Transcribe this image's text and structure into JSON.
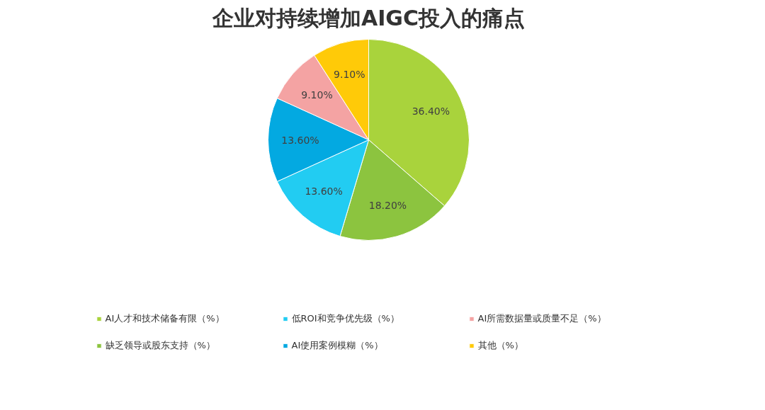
{
  "chart_data": {
    "type": "pie",
    "title": "企业对持续增加AIGC投入的痛点",
    "categories": [
      "AI人才和技术储备有限（%）",
      "缺乏领导或股东支持（%）",
      "低ROI和竞争优先级（%）",
      "AI使用案例模糊（%）",
      "AI所需数据量或质量不足（%）",
      "其他（%）"
    ],
    "values": [
      36.4,
      18.2,
      13.6,
      13.6,
      9.1,
      9.1
    ],
    "colors": [
      "#a9d33c",
      "#8cc43f",
      "#22ccf2",
      "#03a9e1",
      "#f4a3a3",
      "#ffca08"
    ],
    "value_labels": [
      "36.40%",
      "18.20%",
      "13.60%",
      "13.60%",
      "9.10%",
      "9.10%"
    ],
    "legend": "bottom"
  }
}
